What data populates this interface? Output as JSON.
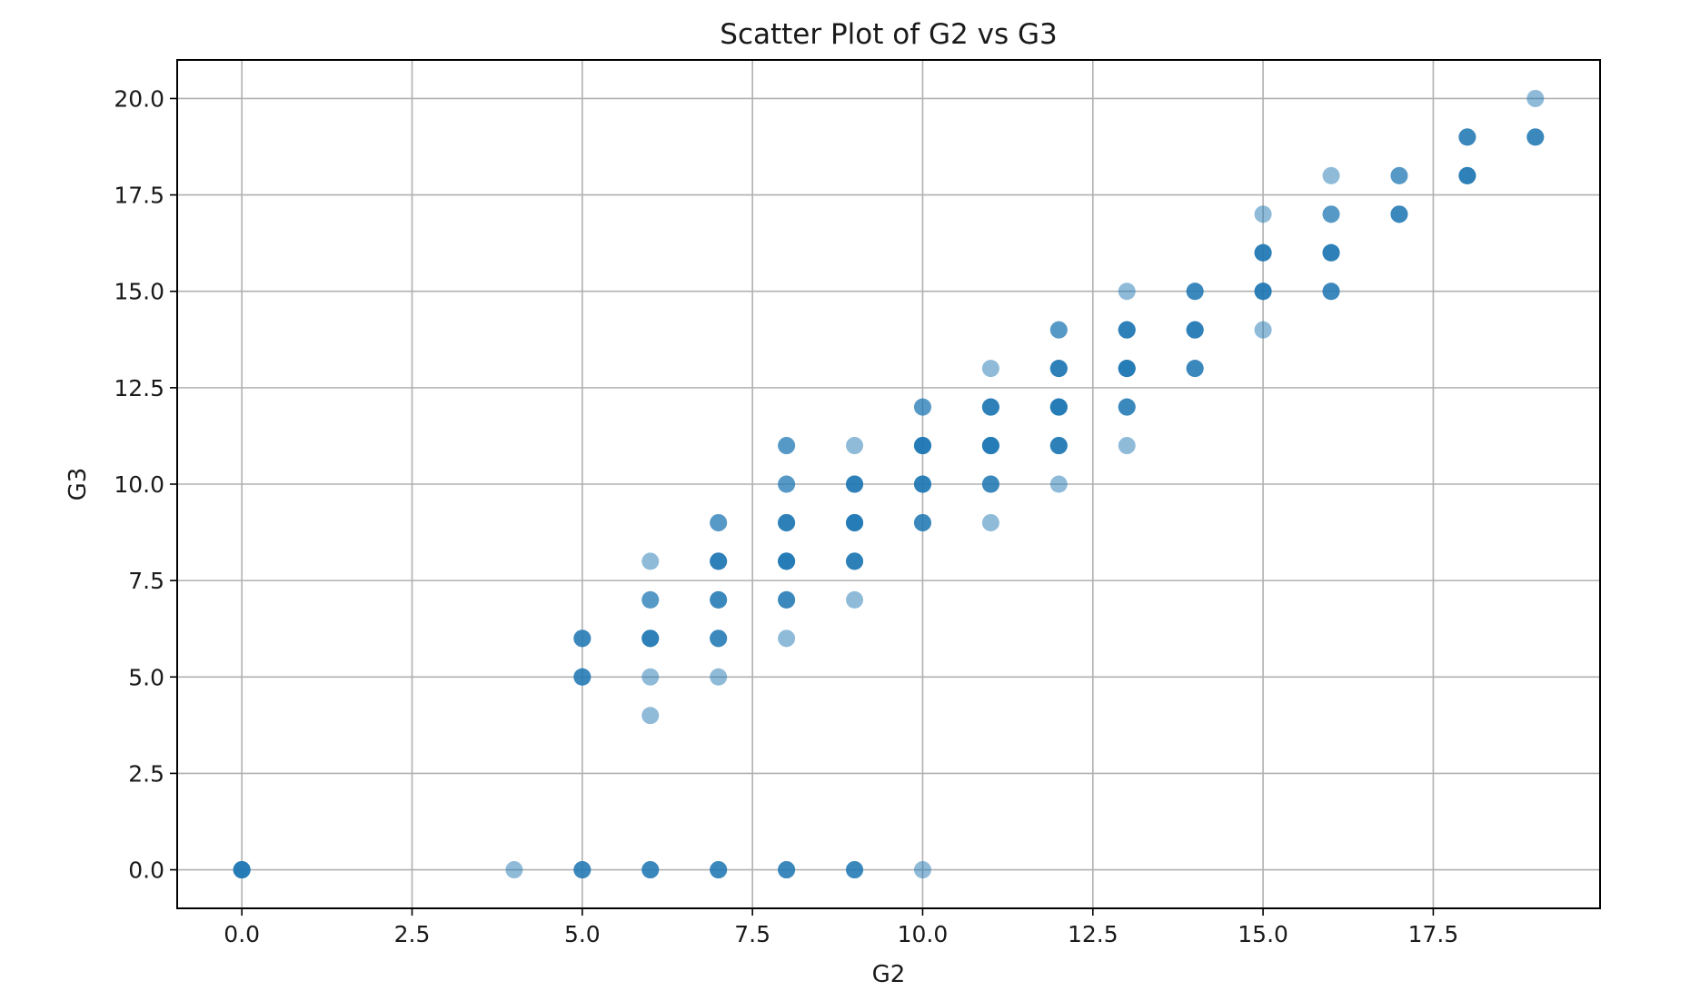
{
  "chart_data": {
    "type": "scatter",
    "title": "Scatter Plot of G2 vs G3",
    "xlabel": "G2",
    "ylabel": "G3",
    "xlim": [
      -0.95,
      19.95
    ],
    "ylim": [
      -1.0,
      21.0
    ],
    "xticks": [
      0.0,
      2.5,
      5.0,
      7.5,
      10.0,
      12.5,
      15.0,
      17.5
    ],
    "xtick_labels": [
      "0.0",
      "2.5",
      "5.0",
      "7.5",
      "10.0",
      "12.5",
      "15.0",
      "17.5"
    ],
    "yticks": [
      0.0,
      2.5,
      5.0,
      7.5,
      10.0,
      12.5,
      15.0,
      17.5,
      20.0
    ],
    "ytick_labels": [
      "0.0",
      "2.5",
      "5.0",
      "7.5",
      "10.0",
      "12.5",
      "15.0",
      "17.5",
      "20.0"
    ],
    "grid": true,
    "marker_color": "#1f77b4",
    "marker_alpha": 0.5,
    "series": [
      {
        "points": [
          [
            0,
            0
          ],
          [
            4,
            0
          ],
          [
            5,
            0
          ],
          [
            6,
            0
          ],
          [
            7,
            0
          ],
          [
            8,
            0
          ],
          [
            9,
            0
          ],
          [
            10,
            0
          ],
          [
            5,
            5
          ],
          [
            5,
            6
          ],
          [
            6,
            4
          ],
          [
            6,
            5
          ],
          [
            6,
            6
          ],
          [
            6,
            7
          ],
          [
            6,
            8
          ],
          [
            7,
            5
          ],
          [
            7,
            6
          ],
          [
            7,
            7
          ],
          [
            7,
            8
          ],
          [
            7,
            9
          ],
          [
            8,
            6
          ],
          [
            8,
            7
          ],
          [
            8,
            8
          ],
          [
            8,
            9
          ],
          [
            8,
            10
          ],
          [
            8,
            11
          ],
          [
            9,
            7
          ],
          [
            9,
            8
          ],
          [
            9,
            9
          ],
          [
            9,
            10
          ],
          [
            9,
            11
          ],
          [
            10,
            9
          ],
          [
            10,
            10
          ],
          [
            10,
            11
          ],
          [
            10,
            12
          ],
          [
            11,
            9
          ],
          [
            11,
            10
          ],
          [
            11,
            11
          ],
          [
            11,
            12
          ],
          [
            11,
            13
          ],
          [
            12,
            10
          ],
          [
            12,
            11
          ],
          [
            12,
            12
          ],
          [
            12,
            13
          ],
          [
            12,
            14
          ],
          [
            13,
            11
          ],
          [
            13,
            12
          ],
          [
            13,
            13
          ],
          [
            13,
            14
          ],
          [
            13,
            15
          ],
          [
            14,
            13
          ],
          [
            14,
            14
          ],
          [
            14,
            15
          ],
          [
            15,
            14
          ],
          [
            15,
            15
          ],
          [
            15,
            16
          ],
          [
            15,
            17
          ],
          [
            16,
            15
          ],
          [
            16,
            16
          ],
          [
            16,
            17
          ],
          [
            16,
            18
          ],
          [
            17,
            17
          ],
          [
            17,
            18
          ],
          [
            18,
            18
          ],
          [
            18,
            19
          ],
          [
            19,
            19
          ],
          [
            19,
            20
          ]
        ],
        "counts": [
          5,
          1,
          3,
          3,
          3,
          3,
          3,
          1,
          3,
          3,
          1,
          1,
          4,
          2,
          1,
          1,
          3,
          3,
          4,
          2,
          1,
          3,
          5,
          4,
          2,
          2,
          1,
          4,
          5,
          4,
          1,
          3,
          4,
          5,
          2,
          1,
          3,
          5,
          4,
          1,
          1,
          4,
          5,
          4,
          2,
          1,
          3,
          5,
          4,
          1,
          3,
          4,
          3,
          1,
          4,
          4,
          1,
          3,
          4,
          2,
          1,
          3,
          2,
          4,
          3,
          3,
          1
        ]
      }
    ]
  }
}
